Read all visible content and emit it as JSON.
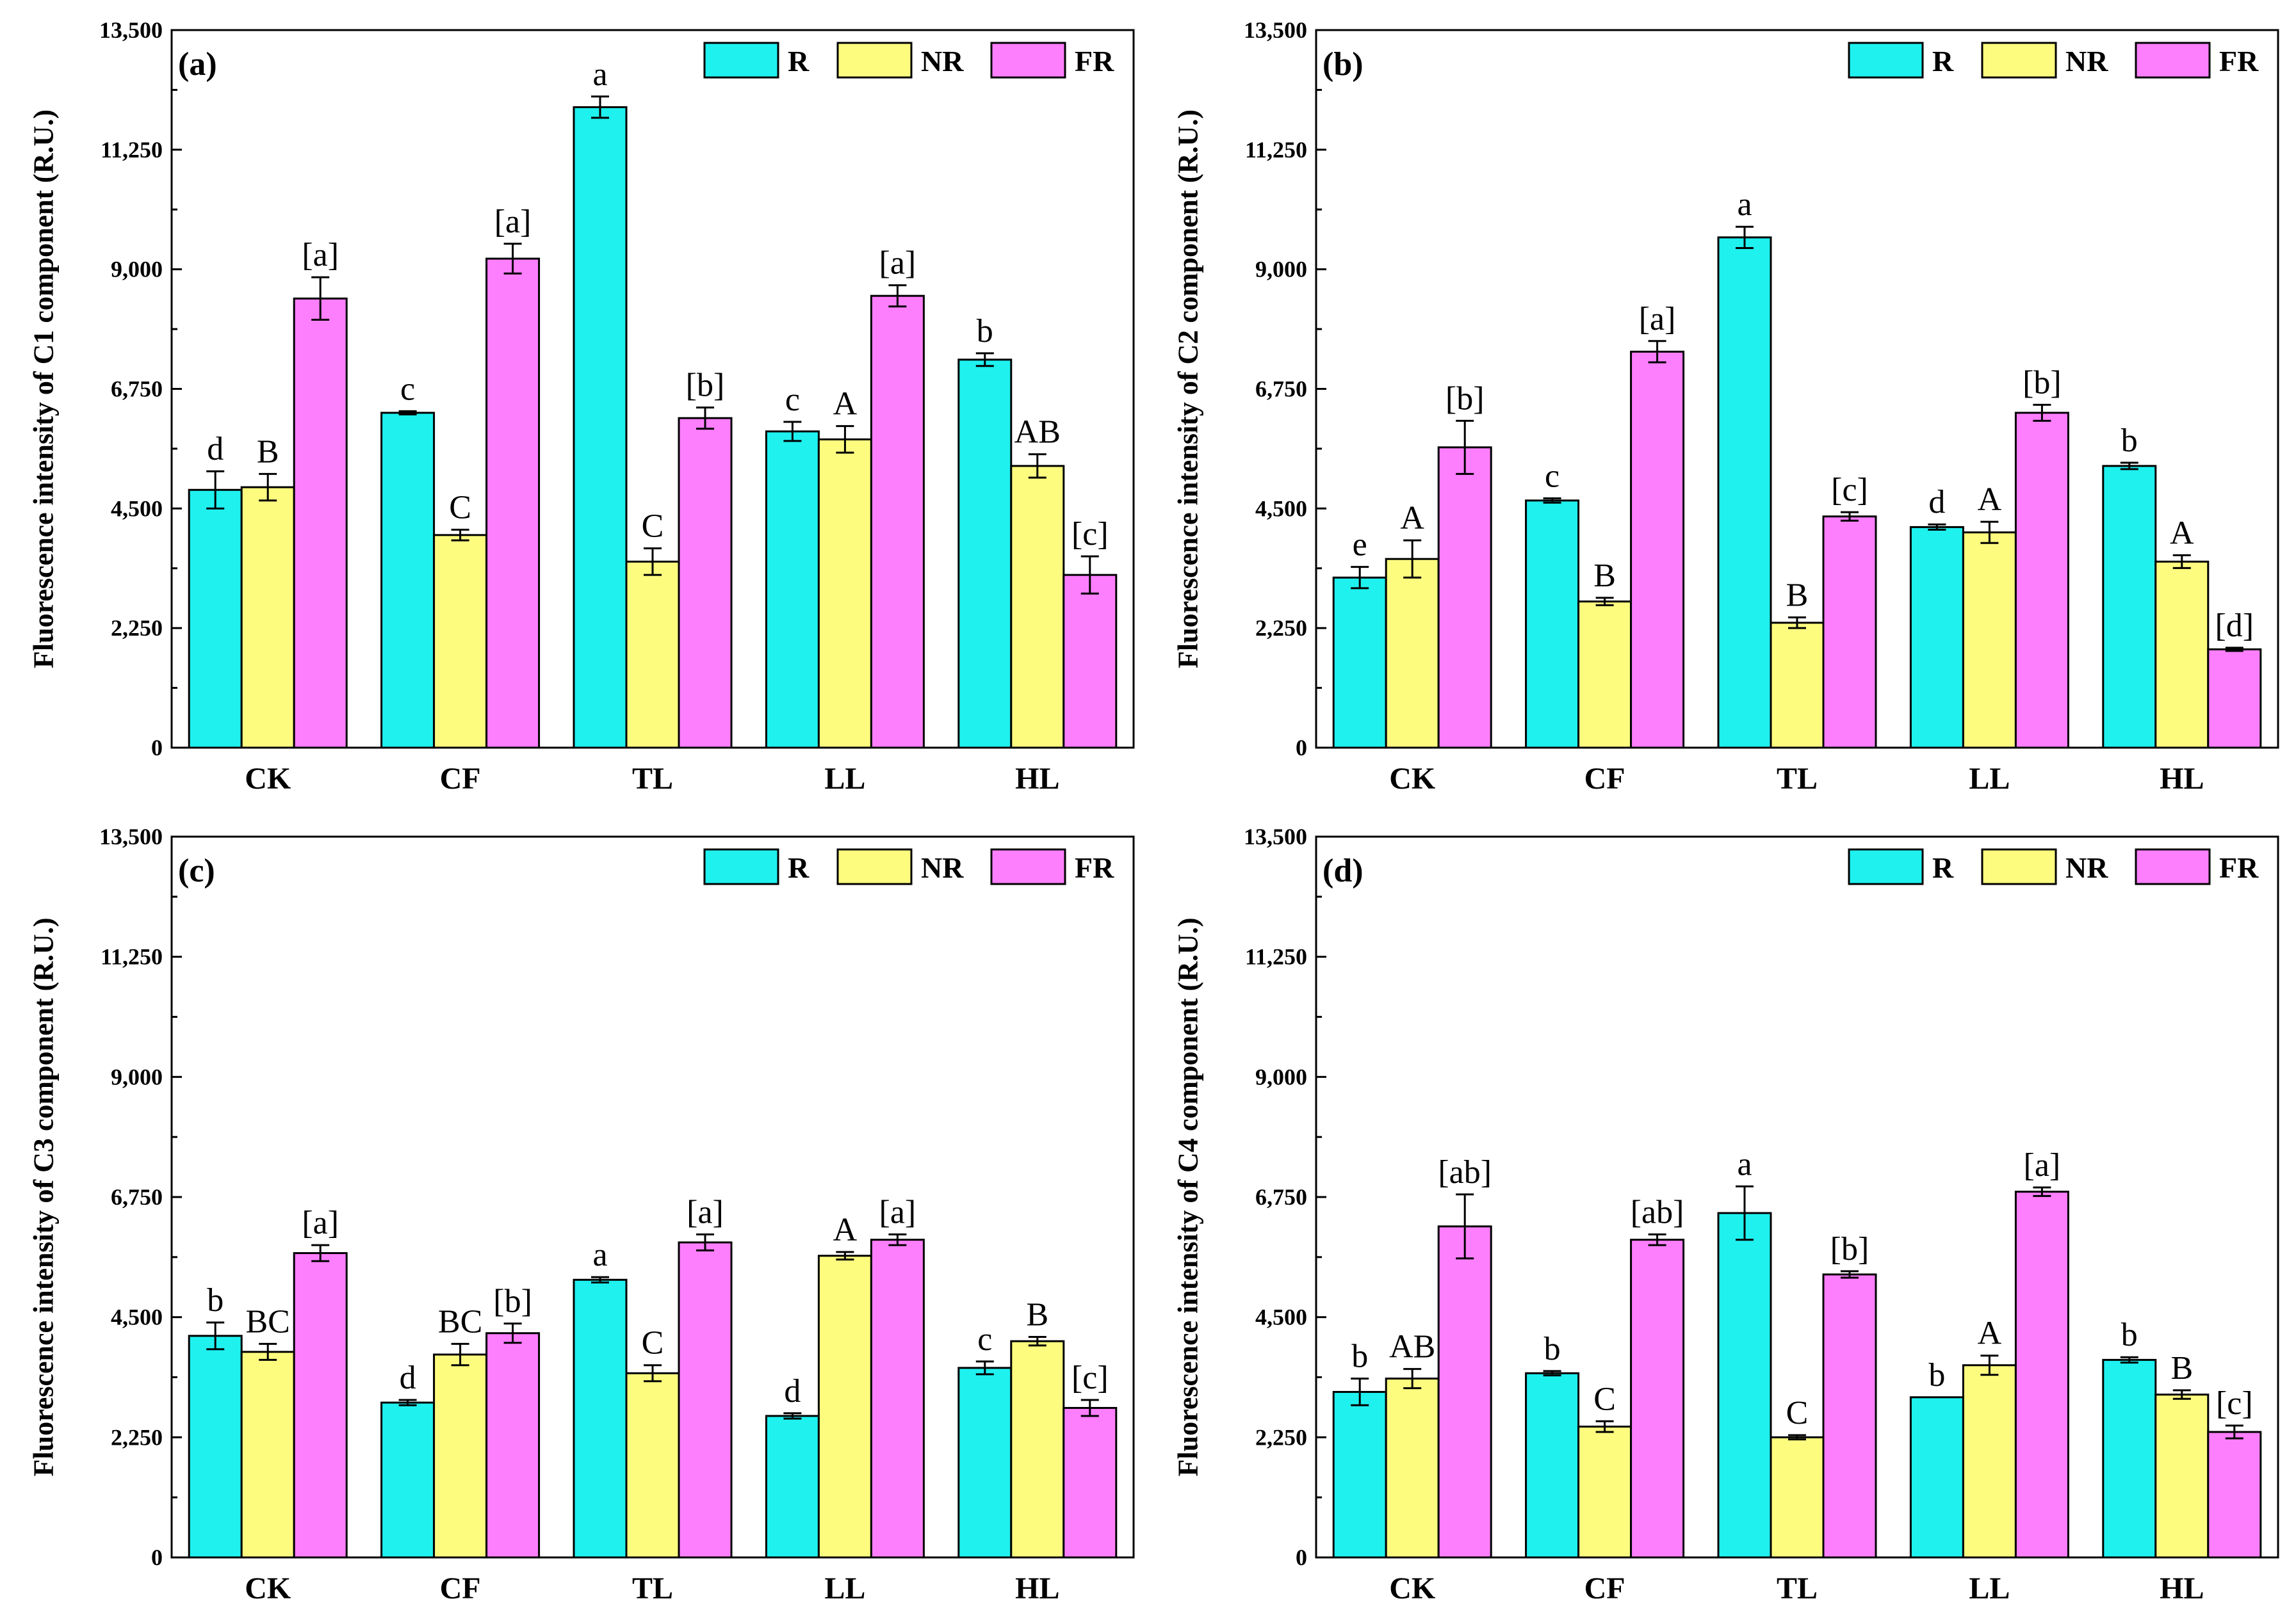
{
  "series_colors": {
    "R": "#1ff1ef",
    "NR": "#fdfc7f",
    "FR": "#fe7ffe"
  },
  "chart_data": [
    {
      "type": "bar",
      "panel_label": "(a)",
      "ylabel": "Fluorescence intensity of C1 component (R.U.)",
      "categories": [
        "CK",
        "CF",
        "TL",
        "LL",
        "HL"
      ],
      "ylim": [
        0,
        13500
      ],
      "yticks": [
        0,
        2250,
        4500,
        6750,
        9000,
        11250,
        13500
      ],
      "ytick_labels": [
        "0",
        "2,250",
        "4,500",
        "6,750",
        "9,000",
        "11,250",
        "13,500"
      ],
      "legend": [
        "R",
        "NR",
        "FR"
      ],
      "legend_position": "top-right",
      "series": [
        {
          "name": "R",
          "values": [
            4850,
            6300,
            12050,
            5950,
            7300
          ],
          "errors": [
            350,
            30,
            200,
            180,
            120
          ],
          "labels": [
            "d",
            "c",
            "a",
            "c",
            "b"
          ]
        },
        {
          "name": "NR",
          "values": [
            4900,
            4000,
            3500,
            5800,
            5300
          ],
          "errors": [
            250,
            100,
            250,
            250,
            220
          ],
          "labels": [
            "B",
            "C",
            "C",
            "A",
            "AB"
          ]
        },
        {
          "name": "FR",
          "values": [
            8450,
            9200,
            6200,
            8500,
            3250
          ],
          "errors": [
            400,
            280,
            200,
            200,
            350
          ],
          "labels": [
            "[a]",
            "[a]",
            "[b]",
            "[a]",
            "[c]"
          ]
        }
      ]
    },
    {
      "type": "bar",
      "panel_label": "(b)",
      "ylabel": "Fluorescence intensity of C2 component (R.U.)",
      "categories": [
        "CK",
        "CF",
        "TL",
        "LL",
        "HL"
      ],
      "ylim": [
        0,
        13500
      ],
      "yticks": [
        0,
        2250,
        4500,
        6750,
        9000,
        11250,
        13500
      ],
      "ytick_labels": [
        "0",
        "2,250",
        "4,500",
        "6,750",
        "9,000",
        "11,250",
        "13,500"
      ],
      "legend": [
        "R",
        "NR",
        "FR"
      ],
      "legend_position": "top-right",
      "series": [
        {
          "name": "R",
          "values": [
            3200,
            4650,
            9600,
            4150,
            5300
          ],
          "errors": [
            200,
            40,
            200,
            50,
            60
          ],
          "labels": [
            "e",
            "c",
            "a",
            "d",
            "b"
          ]
        },
        {
          "name": "NR",
          "values": [
            3550,
            2750,
            2350,
            4050,
            3500
          ],
          "errors": [
            350,
            70,
            100,
            200,
            120
          ],
          "labels": [
            "A",
            "B",
            "B",
            "A",
            "A"
          ]
        },
        {
          "name": "FR",
          "values": [
            5650,
            7450,
            4350,
            6300,
            1850
          ],
          "errors": [
            500,
            200,
            80,
            150,
            30
          ],
          "labels": [
            "[b]",
            "[a]",
            "[c]",
            "[b]",
            "[d]"
          ]
        }
      ]
    },
    {
      "type": "bar",
      "panel_label": "(c)",
      "ylabel": "Fluorescence intensity of C3 component (R.U.)",
      "categories": [
        "CK",
        "CF",
        "TL",
        "LL",
        "HL"
      ],
      "ylim": [
        0,
        13500
      ],
      "yticks": [
        0,
        2250,
        4500,
        6750,
        9000,
        11250,
        13500
      ],
      "ytick_labels": [
        "0",
        "2,250",
        "4,500",
        "6,750",
        "9,000",
        "11,250",
        "13,500"
      ],
      "legend": [
        "R",
        "NR",
        "FR"
      ],
      "legend_position": "top-right",
      "series": [
        {
          "name": "R",
          "values": [
            4150,
            2900,
            5200,
            2650,
            3550
          ],
          "errors": [
            250,
            50,
            50,
            50,
            120
          ],
          "labels": [
            "b",
            "d",
            "a",
            "d",
            "c"
          ]
        },
        {
          "name": "NR",
          "values": [
            3850,
            3800,
            3450,
            5650,
            4050
          ],
          "errors": [
            150,
            200,
            150,
            70,
            80
          ],
          "labels": [
            "BC",
            "BC",
            "C",
            "A",
            "B"
          ]
        },
        {
          "name": "FR",
          "values": [
            5700,
            4200,
            5900,
            5950,
            2800
          ],
          "errors": [
            150,
            180,
            150,
            100,
            150
          ],
          "labels": [
            "[a]",
            "[b]",
            "[a]",
            "[a]",
            "[c]"
          ]
        }
      ]
    },
    {
      "type": "bar",
      "panel_label": "(d)",
      "ylabel": "Fluorescence intensity of C4 component (R.U.)",
      "categories": [
        "CK",
        "CF",
        "TL",
        "LL",
        "HL"
      ],
      "ylim": [
        0,
        13500
      ],
      "yticks": [
        0,
        2250,
        4500,
        6750,
        9000,
        11250,
        13500
      ],
      "ytick_labels": [
        "0",
        "2,250",
        "4,500",
        "6,750",
        "9,000",
        "11,250",
        "13,500"
      ],
      "legend": [
        "R",
        "NR",
        "FR"
      ],
      "legend_position": "top-right",
      "series": [
        {
          "name": "R",
          "values": [
            3100,
            3450,
            6450,
            3000,
            3700
          ],
          "errors": [
            250,
            40,
            500,
            0,
            50
          ],
          "labels": [
            "b",
            "b",
            "a",
            "b",
            "b"
          ]
        },
        {
          "name": "NR",
          "values": [
            3350,
            2450,
            2250,
            3600,
            3050
          ],
          "errors": [
            180,
            100,
            40,
            180,
            80
          ],
          "labels": [
            "AB",
            "C",
            "C",
            "A",
            "B"
          ]
        },
        {
          "name": "FR",
          "values": [
            6200,
            5950,
            5300,
            6850,
            2350
          ],
          "errors": [
            600,
            100,
            60,
            80,
            120
          ],
          "labels": [
            "[ab]",
            "[ab]",
            "[b]",
            "[a]",
            "[c]"
          ]
        }
      ]
    }
  ]
}
